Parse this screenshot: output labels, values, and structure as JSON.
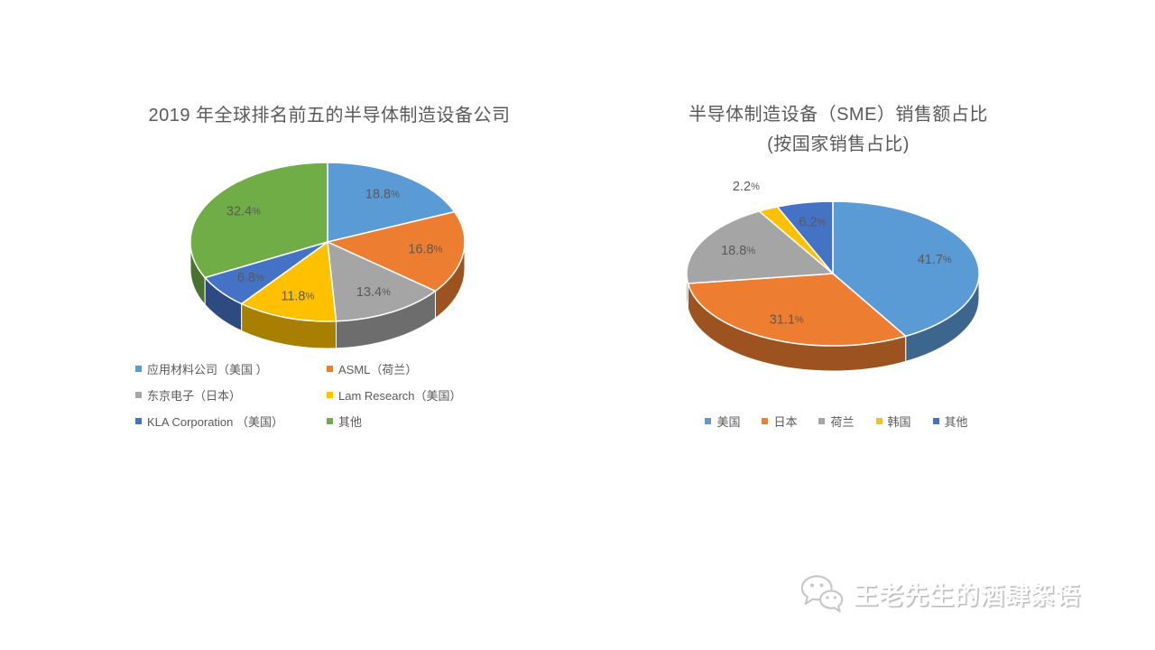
{
  "chart_data": [
    {
      "type": "pie",
      "style": "3d",
      "title": "2019 年全球排名前五的半导体制造设备公司",
      "start": "12-oclock-clockwise",
      "labels": [
        "应用材料公司（美国 ）",
        "ASML（荷兰）",
        "东京电子（日本）",
        "Lam Research（美国）",
        "KLA Corporation （美国）",
        "其他"
      ],
      "values": [
        18.8,
        16.8,
        13.4,
        11.8,
        6.8,
        32.4
      ],
      "value_labels": [
        "18.8%",
        "16.8%",
        "13.4%",
        "11.8%",
        "6.8%",
        "32.4%"
      ],
      "colors": [
        "#5B9BD5",
        "#ED7D31",
        "#A5A5A5",
        "#FFC000",
        "#4472C4",
        "#70AD47"
      ],
      "unit": "%",
      "legend_position": "bottom-two-columns"
    },
    {
      "type": "pie",
      "style": "3d",
      "title": "半导体制造设备（SME）销售额占比",
      "subtitle": "(按国家销售占比)",
      "start": "12-oclock-clockwise",
      "labels": [
        "美国",
        "日本",
        "荷兰",
        "韩国",
        "其他"
      ],
      "values": [
        41.7,
        31.1,
        18.8,
        2.2,
        6.2
      ],
      "value_labels": [
        "41.7%",
        "31.1%",
        "18.8%",
        "2.2%",
        "6.2%"
      ],
      "colors": [
        "#5B9BD5",
        "#ED7D31",
        "#A5A5A5",
        "#FFC000",
        "#4472C4"
      ],
      "unit": "%",
      "legend_position": "bottom-row"
    }
  ],
  "watermark": {
    "icon": "wechat-icon",
    "text": "王老先生的酒肆絮语"
  }
}
